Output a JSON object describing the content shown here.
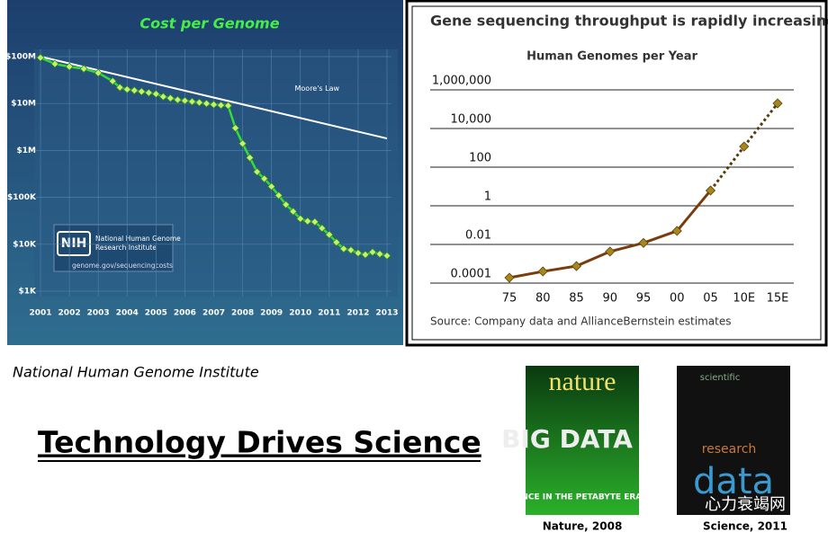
{
  "chart_data": [
    {
      "type": "line",
      "title": "Cost per Genome",
      "log_y": true,
      "color": "#33dd33",
      "x": [
        2001,
        2001.5,
        2002,
        2002.5,
        2003,
        2003.5,
        2003.75,
        2004,
        2004.25,
        2004.5,
        2004.75,
        2005,
        2005.25,
        2005.5,
        2005.75,
        2006,
        2006.25,
        2006.5,
        2006.75,
        2007,
        2007.25,
        2007.5,
        2007.75,
        2008,
        2008.25,
        2008.5,
        2008.75,
        2009,
        2009.25,
        2009.5,
        2009.75,
        2010,
        2010.25,
        2010.5,
        2010.75,
        2011,
        2011.25,
        2011.5,
        2011.75,
        2012,
        2012.25,
        2012.5,
        2012.75,
        2013
      ],
      "series": [
        {
          "color": "#33dd33",
          "marker_color": "#c8f06a",
          "values": [
            95000000,
            70000000,
            61000000,
            55000000,
            45000000,
            30000000,
            22000000,
            20000000,
            19000000,
            18000000,
            17000000,
            16000000,
            14000000,
            13000000,
            12000000,
            11500000,
            11000000,
            10500000,
            10000000,
            9500000,
            9200000,
            9000000,
            3000000,
            1400000,
            700000,
            350000,
            250000,
            170000,
            110000,
            70000,
            50000,
            35000,
            31000,
            30000,
            22000,
            16000,
            11000,
            8000,
            7500,
            6500,
            6000,
            6800,
            6200,
            5700
          ]
        }
      ],
      "trend": {
        "name": "Moore's Law",
        "color": "#ffffff",
        "x": [
          2001,
          2013
        ],
        "values": [
          100000000,
          1800000
        ]
      },
      "xlim": [
        2001,
        2013
      ],
      "xticks": [
        2001,
        2002,
        2003,
        2004,
        2005,
        2006,
        2007,
        2008,
        2009,
        2010,
        2011,
        2012,
        2013
      ],
      "ylim": [
        1000,
        100000000
      ],
      "yticks": [
        {
          "value": 1000,
          "label": "$1K"
        },
        {
          "value": 10000,
          "label": "$10K"
        },
        {
          "value": 100000,
          "label": "$100K"
        },
        {
          "value": 1000000,
          "label": "$1M"
        },
        {
          "value": 10000000,
          "label": "$10M"
        },
        {
          "value": 100000000,
          "label": "$100M"
        }
      ],
      "grid": true,
      "annotations": [
        "NIH",
        "National Human Genome",
        "Research Institute",
        "genome.gov/sequencingcosts"
      ]
    },
    {
      "type": "line",
      "title": "Gene sequencing throughput is rapidly increasing",
      "subtitle": "Human Genomes per Year",
      "log_y": true,
      "categories": [
        "75",
        "80",
        "85",
        "90",
        "95",
        "00",
        "05",
        "10E",
        "15E"
      ],
      "series": [
        {
          "color": "#7a3c0c",
          "marker_color": "#a8861e",
          "values": [
            0.00019,
            0.0004,
            0.00076,
            0.0043,
            0.012,
            0.05,
            6.2,
            null,
            null
          ]
        },
        {
          "color": "#5a3a0a",
          "marker_color": "#a8861e",
          "dotted": true,
          "values": [
            null,
            null,
            null,
            null,
            null,
            null,
            null,
            1170,
            200000
          ]
        }
      ],
      "ylim": [
        0.0001,
        1000000
      ],
      "yticks": [
        0.0001,
        0.01,
        1,
        100,
        {
          "value": 10000,
          "label": "10,000"
        },
        {
          "value": 1000000,
          "label": "1,000,000"
        }
      ],
      "grid": true,
      "source": "Source: Company data and AllianceBernstein estimates"
    }
  ],
  "slide": {
    "caption": "National Human Genome Institute",
    "title": "Technology Drives Science",
    "covers": [
      {
        "masthead": "nature",
        "headline": "BIG DATA",
        "tagline": "SCIENCE IN THE PETABYTE ERA",
        "label": "Nature, 2008"
      },
      {
        "masthead": "scientific",
        "headline": "data",
        "tagline": "research",
        "label": "Science, 2011"
      }
    ],
    "watermark": "心力衰竭网"
  }
}
